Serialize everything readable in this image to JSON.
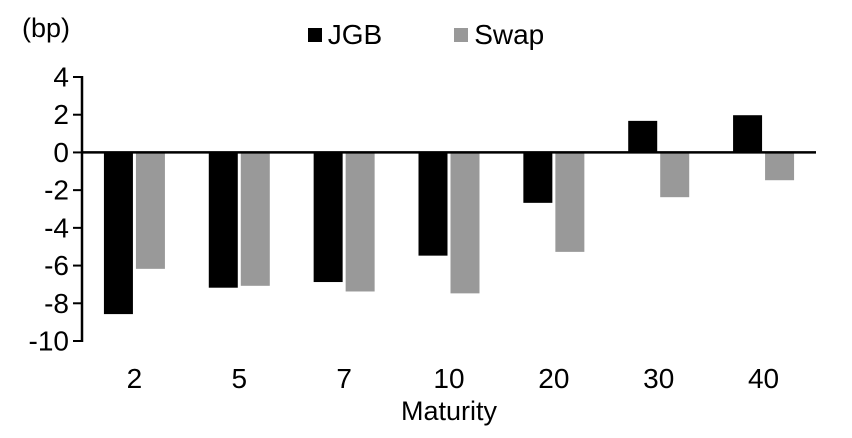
{
  "chart_data": {
    "type": "bar",
    "y_unit_label": "(bp)",
    "xlabel": "Maturity",
    "categories": [
      "2",
      "5",
      "7",
      "10",
      "20",
      "30",
      "40"
    ],
    "series": [
      {
        "name": "JGB",
        "color": "#000000",
        "values": [
          -8.6,
          -7.2,
          -6.9,
          -5.5,
          -2.7,
          1.7,
          2.0
        ]
      },
      {
        "name": "Swap",
        "color": "#999999",
        "values": [
          -6.2,
          -7.1,
          -7.4,
          -7.5,
          -5.3,
          -2.4,
          -1.5
        ]
      }
    ],
    "ylim": [
      -10,
      4
    ],
    "yticks": [
      4,
      2,
      0,
      -2,
      -4,
      -6,
      -8,
      -10
    ],
    "ytick_step": 2,
    "grid": false,
    "legend_position": "top-center",
    "axis_color": "#000000",
    "background_color": "#ffffff"
  }
}
